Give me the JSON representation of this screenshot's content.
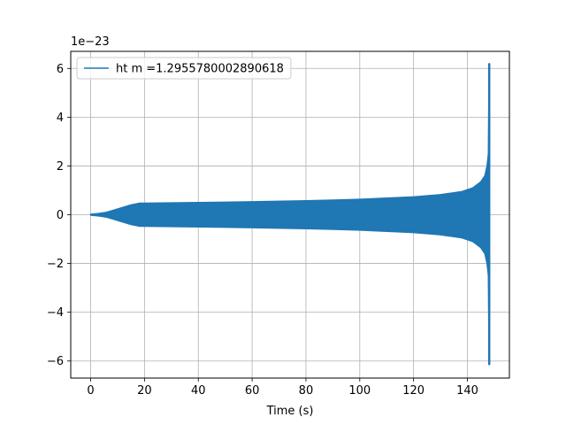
{
  "chart_data": {
    "type": "line",
    "title": "",
    "xlabel": "Time (s)",
    "ylabel": "",
    "y_offset_label": "1e−23",
    "xlim": [
      -7.4,
      155.6
    ],
    "ylim": [
      -6.7,
      6.7
    ],
    "x_ticks": [
      0,
      20,
      40,
      60,
      80,
      100,
      120,
      140
    ],
    "x_tick_labels": [
      "0",
      "20",
      "40",
      "60",
      "80",
      "100",
      "120",
      "140"
    ],
    "y_ticks": [
      -6,
      -4,
      -2,
      0,
      2,
      4,
      6
    ],
    "y_tick_labels": [
      "−6",
      "−4",
      "−2",
      "0",
      "2",
      "4",
      "6"
    ],
    "grid": true,
    "legend_position": "upper-left",
    "series": [
      {
        "name": "ht m =1.2955780002890618",
        "color": "#1f77b4",
        "style": "oscillating-envelope",
        "envelope": {
          "x": [
            0,
            3,
            6,
            9,
            12,
            15,
            18,
            20,
            40,
            60,
            80,
            100,
            120,
            130,
            138,
            142,
            145,
            146.5,
            147.3,
            147.8,
            148.1
          ],
          "upper": [
            0.02,
            0.05,
            0.1,
            0.2,
            0.3,
            0.4,
            0.47,
            0.47,
            0.5,
            0.53,
            0.57,
            0.63,
            0.73,
            0.82,
            0.95,
            1.1,
            1.35,
            1.6,
            2.0,
            2.5,
            6.2
          ],
          "lower": [
            -0.02,
            -0.05,
            -0.1,
            -0.2,
            -0.3,
            -0.4,
            -0.47,
            -0.47,
            -0.5,
            -0.53,
            -0.57,
            -0.63,
            -0.73,
            -0.82,
            -0.95,
            -1.1,
            -1.35,
            -1.6,
            -2.0,
            -2.5,
            -6.15
          ]
        }
      }
    ]
  }
}
